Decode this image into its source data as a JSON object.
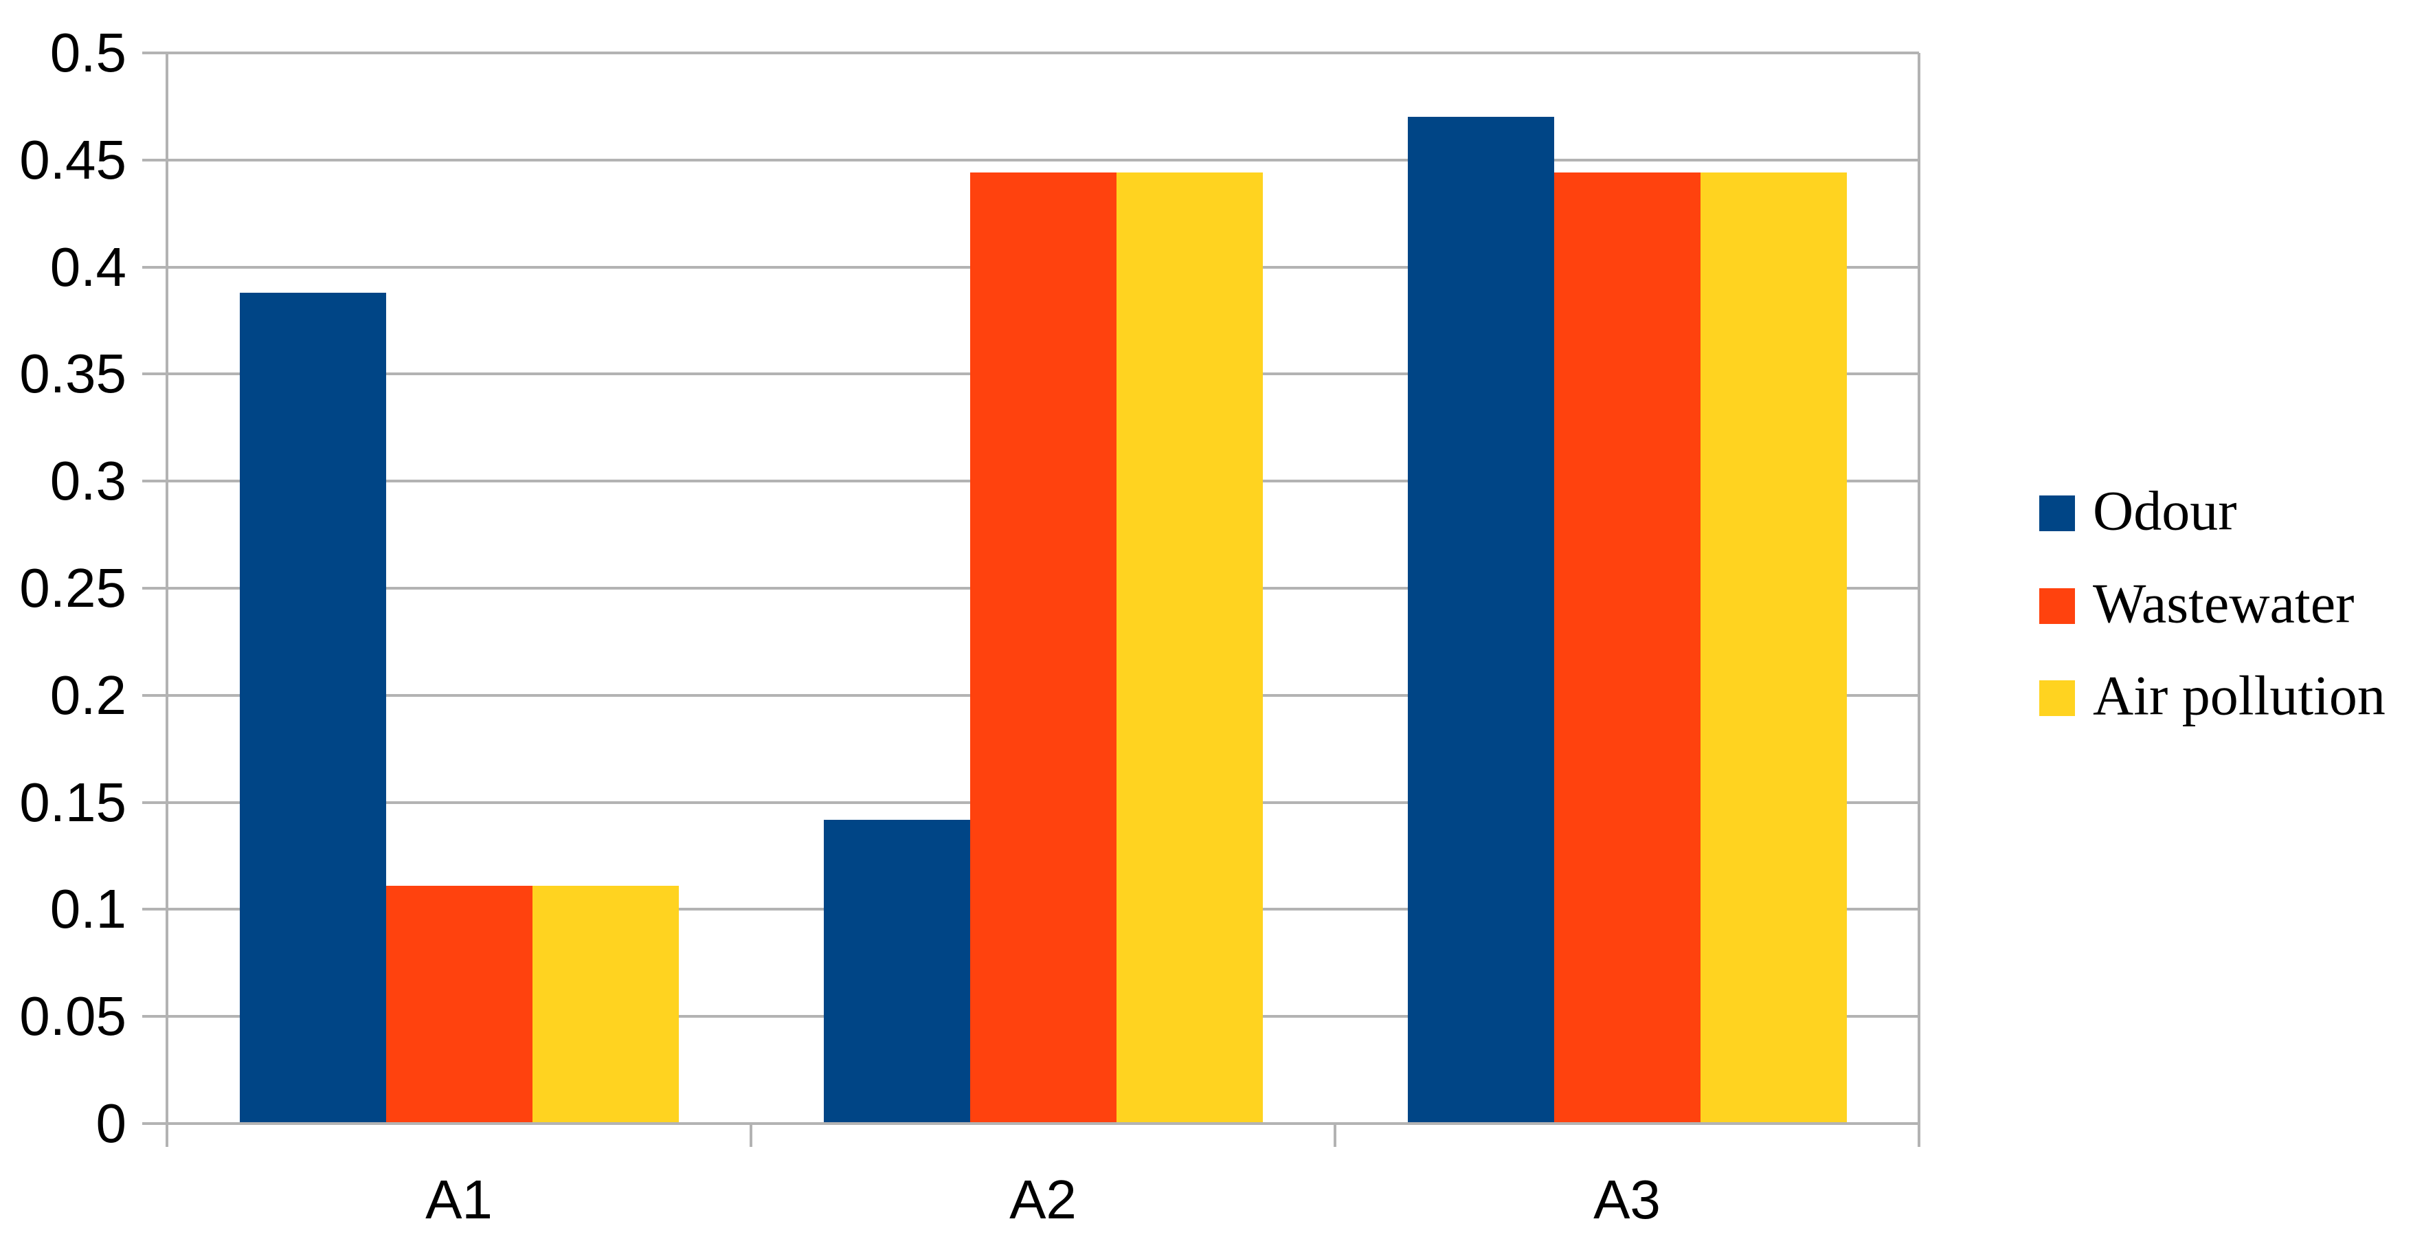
{
  "chart_data": {
    "type": "bar",
    "title": "",
    "xlabel": "",
    "ylabel": "",
    "categories": [
      "A1",
      "A2",
      "A3"
    ],
    "series": [
      {
        "name": "Odour",
        "color": "#004586",
        "values": [
          0.388,
          0.142,
          0.47
        ]
      },
      {
        "name": "Wastewater",
        "color": "#FF420E",
        "values": [
          0.111,
          0.444,
          0.444
        ]
      },
      {
        "name": "Air pollution",
        "color": "#FFD320",
        "values": [
          0.111,
          0.444,
          0.444
        ]
      }
    ],
    "ylim": [
      0,
      0.5
    ],
    "y_tick_step": 0.05,
    "y_ticks": [
      "0",
      "0.05",
      "0.1",
      "0.15",
      "0.2",
      "0.25",
      "0.3",
      "0.35",
      "0.4",
      "0.45",
      "0.5"
    ],
    "grid": "horizontal",
    "legend_position": "right",
    "colors": {
      "axis": "#b3b3b3",
      "gridline": "#b3b3b3",
      "text": "#000000",
      "background": "#ffffff"
    }
  }
}
